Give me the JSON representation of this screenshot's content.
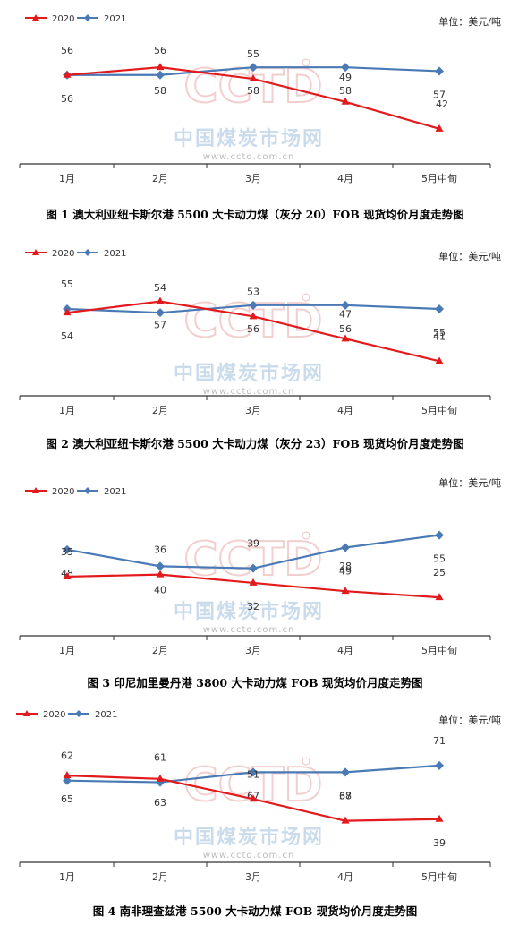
{
  "watermark": {
    "logo": "CCTD",
    "cn": "中国煤炭市场网",
    "url": "www.cctd.com.cn"
  },
  "colors": {
    "s2020": "#e31a1c",
    "s2021": "#4a7ab5"
  },
  "chart_data": [
    {
      "type": "line",
      "categories": [
        "1月",
        "2月",
        "3月",
        "4月",
        "5月中旬"
      ],
      "series": [
        {
          "name": "2020",
          "values": [
            56,
            58,
            55,
            49,
            42
          ]
        },
        {
          "name": "2021",
          "values": [
            56,
            56,
            58,
            58,
            57
          ]
        }
      ],
      "unit": "单位：美元/吨",
      "caption": "图 1 澳大利亚纽卡斯尔港 5500 大卡动力煤（灰分 20）FOB 现货均价月度走势图",
      "ylim": [
        38,
        62
      ],
      "legend": "top-left"
    },
    {
      "type": "line",
      "categories": [
        "1月",
        "2月",
        "3月",
        "4月",
        "5月中旬"
      ],
      "series": [
        {
          "name": "2020",
          "values": [
            54,
            57,
            53,
            47,
            41
          ]
        },
        {
          "name": "2021",
          "values": [
            55,
            54,
            56,
            56,
            55
          ]
        }
      ],
      "unit": "单位：美元/吨",
      "caption": "图 2 澳大利亚纽卡斯尔港 5500 大卡动力煤（灰分 23）FOB 现货均价月度走势图",
      "ylim": [
        37,
        61
      ],
      "legend": "top-left"
    },
    {
      "type": "line",
      "categories": [
        "1月",
        "2月",
        "3月",
        "4月",
        "5月中旬"
      ],
      "series": [
        {
          "name": "2020",
          "values": [
            35,
            36,
            32,
            28,
            25
          ]
        },
        {
          "name": "2021",
          "values": [
            48,
            40,
            39,
            49,
            55
          ]
        }
      ],
      "unit": "单位：美元/吨",
      "caption": "图 3 印尼加里曼丹港 3800 大卡动力煤 FOB 现货均价月度走势图",
      "ylim": [
        16,
        60
      ],
      "legend": "top-left"
    },
    {
      "type": "line",
      "categories": [
        "1月",
        "2月",
        "3月",
        "4月",
        "5月中旬"
      ],
      "series": [
        {
          "name": "2020",
          "values": [
            65,
            63,
            51,
            38,
            39
          ]
        },
        {
          "name": "2021",
          "values": [
            62,
            61,
            67,
            67,
            71
          ]
        }
      ],
      "unit": "单位：美元/吨",
      "caption": "图 4 南非理查兹港 5500 大卡动力煤 FOB 现货均价月度走势图",
      "ylim": [
        25,
        80
      ],
      "legend": "top-left"
    }
  ]
}
